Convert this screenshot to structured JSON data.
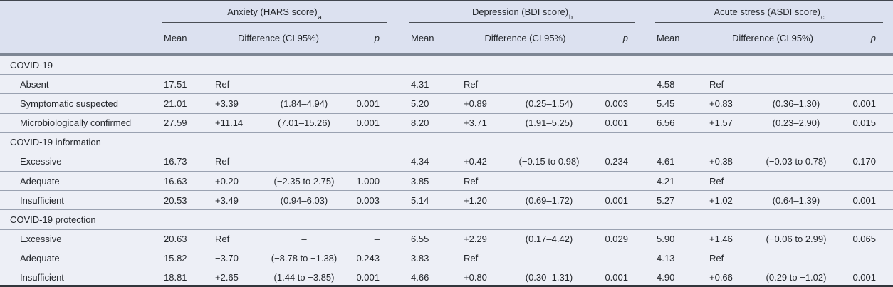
{
  "header": {
    "groups": [
      {
        "title": "Anxiety (HARS score)",
        "footnote": "a"
      },
      {
        "title": "Depression (BDI score)",
        "footnote": "b"
      },
      {
        "title": "Acute stress (ASDI score)",
        "footnote": "c"
      }
    ],
    "sub_columns": {
      "mean": "Mean",
      "difference": "Difference (CI 95%)",
      "p": "p"
    }
  },
  "rows": [
    {
      "type": "section",
      "label": "COVID-19"
    },
    {
      "type": "data",
      "label": "Absent",
      "cells": [
        [
          "17.51",
          "Ref",
          "–",
          "–"
        ],
        [
          "4.31",
          "Ref",
          "–",
          "–"
        ],
        [
          "4.58",
          "Ref",
          "–",
          "–"
        ]
      ]
    },
    {
      "type": "data",
      "label": "Symptomatic suspected",
      "cells": [
        [
          "21.01",
          "+3.39",
          "(1.84–4.94)",
          "0.001"
        ],
        [
          "5.20",
          "+0.89",
          "(0.25–1.54)",
          "0.003"
        ],
        [
          "5.45",
          "+0.83",
          "(0.36–1.30)",
          "0.001"
        ]
      ]
    },
    {
      "type": "data",
      "label": "Microbiologically confirmed",
      "cells": [
        [
          "27.59",
          "+11.14",
          "(7.01–15.26)",
          "0.001"
        ],
        [
          "8.20",
          "+3.71",
          "(1.91–5.25)",
          "0.001"
        ],
        [
          "6.56",
          "+1.57",
          "(0.23–2.90)",
          "0.015"
        ]
      ]
    },
    {
      "type": "section",
      "label": "COVID-19 information"
    },
    {
      "type": "data",
      "label": "Excessive",
      "cells": [
        [
          "16.73",
          "Ref",
          "–",
          "–"
        ],
        [
          "4.34",
          "+0.42",
          "(−0.15 to 0.98)",
          "0.234"
        ],
        [
          "4.61",
          "+0.38",
          "(−0.03 to 0.78)",
          "0.170"
        ]
      ]
    },
    {
      "type": "data",
      "label": "Adequate",
      "cells": [
        [
          "16.63",
          "+0.20",
          "(−2.35 to 2.75)",
          "1.000"
        ],
        [
          "3.85",
          "Ref",
          "–",
          "–"
        ],
        [
          "4.21",
          "Ref",
          "–",
          "–"
        ]
      ]
    },
    {
      "type": "data",
      "label": "Insufficient",
      "cells": [
        [
          "20.53",
          "+3.49",
          "(0.94–6.03)",
          "0.003"
        ],
        [
          "5.14",
          "+1.20",
          "(0.69–1.72)",
          "0.001"
        ],
        [
          "5.27",
          "+1.02",
          "(0.64–1.39)",
          "0.001"
        ]
      ]
    },
    {
      "type": "section",
      "label": "COVID-19 protection"
    },
    {
      "type": "data",
      "label": "Excessive",
      "cells": [
        [
          "20.63",
          "Ref",
          "–",
          "–"
        ],
        [
          "6.55",
          "+2.29",
          "(0.17–4.42)",
          "0.029"
        ],
        [
          "5.90",
          "+1.46",
          "(−0.06 to 2.99)",
          "0.065"
        ]
      ]
    },
    {
      "type": "data",
      "label": "Adequate",
      "cells": [
        [
          "15.82",
          "−3.70",
          "(−8.78 to −1.38)",
          "0.243"
        ],
        [
          "3.83",
          "Ref",
          "–",
          "–"
        ],
        [
          "4.13",
          "Ref",
          "–",
          "–"
        ]
      ]
    },
    {
      "type": "data",
      "label": "Insufficient",
      "cells": [
        [
          "18.81",
          "+2.65",
          "(1.44 to −3.85)",
          "0.001"
        ],
        [
          "4.66",
          "+0.80",
          "(0.30–1.31)",
          "0.001"
        ],
        [
          "4.90",
          "+0.66",
          "(0.29 to −1.02)",
          "0.001"
        ]
      ]
    }
  ]
}
